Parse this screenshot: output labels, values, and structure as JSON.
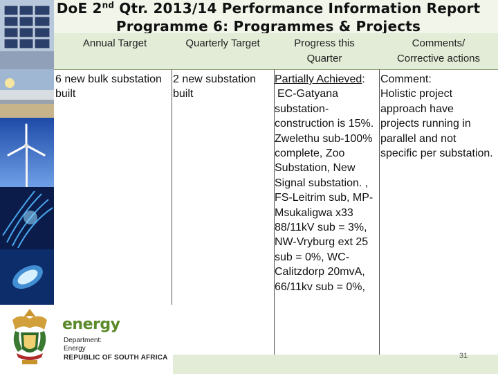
{
  "header": {
    "title_line1_pre": "DoE 2",
    "title_line1_sup": "nd",
    "title_line1_post": " Qtr. 2013/14 Performance Information Report",
    "title_line2": "Programme 6: Programmes & Projects"
  },
  "table": {
    "columns": [
      "Annual Target",
      "Quarterly Target",
      "Progress this Quarter",
      "Comments/ Corrective actions"
    ],
    "row": {
      "annual_target": "6 new bulk substation built",
      "quarterly_target": "2 new substation built",
      "progress_label": "Partially Achieved",
      "progress_colon": ":",
      "progress_detail": "EC-Gatyana substation-construction is 15%. Zwelethu sub-100% complete, Zoo Substation, New Signal substation. , FS-Leitrim sub, MP-Msukaligwa x33 88/11kV sub = 3%, NW-Vryburg ext 25 sub = 0%, WC- Calitzdorp 20mvA, 66/11kv sub = 0%,",
      "comment_label": "Comment:",
      "comment_detail": "Holistic project approach have projects running in parallel and not specific per substation."
    }
  },
  "footer": {
    "brand": "energy",
    "dept_line1": "Department:",
    "dept_line2": "Energy",
    "country": "REPUBLIC OF SOUTH AFRICA",
    "page_number": "31"
  },
  "colors": {
    "header_bg": "#f2f6ea",
    "table_bg": "#e3ecd6",
    "brand_green": "#5a8a2a"
  },
  "icons": [
    "solar-panel-photo",
    "pipeline-photo",
    "wind-turbine-photo",
    "blue-light-photo",
    "blue-bulb-photo",
    "coat-of-arms-icon"
  ]
}
